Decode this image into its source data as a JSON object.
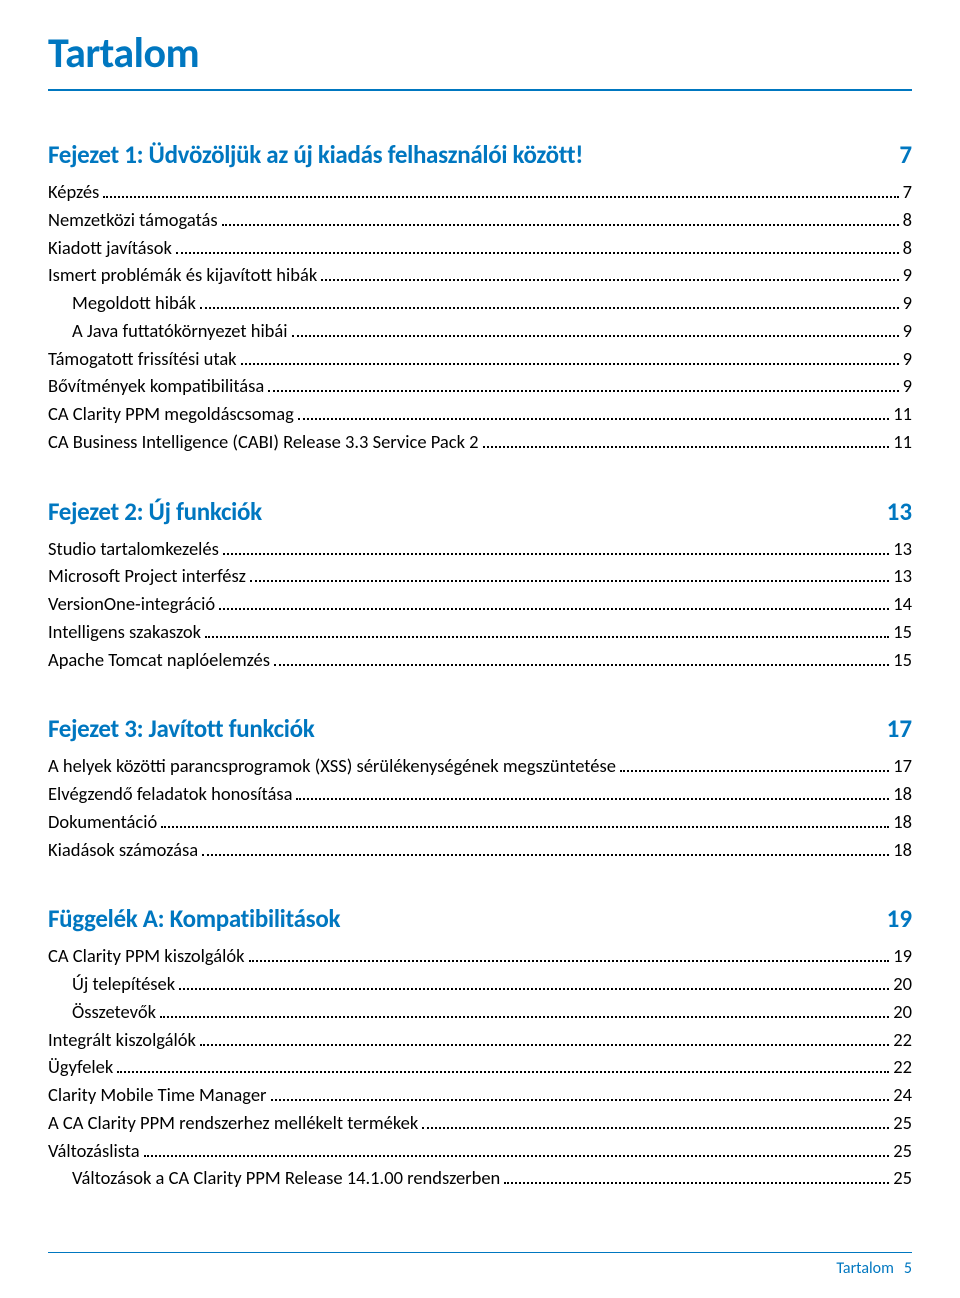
{
  "title": "Tartalom",
  "colors": {
    "accent": "#0077c0",
    "text": "#000000",
    "background": "#ffffff"
  },
  "typography": {
    "title_fontsize_pt": 32,
    "chapter_fontsize_pt": 19,
    "item_fontsize_pt": 14,
    "font_family": "Segoe UI / Calibri"
  },
  "chapters": [
    {
      "title": "Fejezet 1: Üdvözöljük az új kiadás felhasználói között!",
      "page": "7",
      "items": [
        {
          "label": "Képzés",
          "page": "7",
          "indent": 0
        },
        {
          "label": "Nemzetközi támogatás",
          "page": "8",
          "indent": 0
        },
        {
          "label": "Kiadott javítások",
          "page": "8",
          "indent": 0
        },
        {
          "label": "Ismert problémák és kijavított hibák",
          "page": "9",
          "indent": 0
        },
        {
          "label": "Megoldott hibák",
          "page": "9",
          "indent": 1
        },
        {
          "label": "A Java futtatókörnyezet hibái",
          "page": "9",
          "indent": 1
        },
        {
          "label": "Támogatott frissítési utak",
          "page": "9",
          "indent": 0
        },
        {
          "label": "Bővítmények kompatibilitása",
          "page": "9",
          "indent": 0
        },
        {
          "label": "CA Clarity PPM megoldáscsomag",
          "page": "11",
          "indent": 0
        },
        {
          "label": "CA Business Intelligence (CABI) Release 3.3 Service Pack 2",
          "page": "11",
          "indent": 0
        }
      ]
    },
    {
      "title": "Fejezet 2: Új funkciók",
      "page": "13",
      "items": [
        {
          "label": "Studio tartalomkezelés",
          "page": "13",
          "indent": 0
        },
        {
          "label": "Microsoft Project interfész",
          "page": "13",
          "indent": 0
        },
        {
          "label": "VersionOne-integráció",
          "page": "14",
          "indent": 0
        },
        {
          "label": "Intelligens szakaszok",
          "page": "15",
          "indent": 0
        },
        {
          "label": "Apache Tomcat naplóelemzés",
          "page": "15",
          "indent": 0
        }
      ]
    },
    {
      "title": "Fejezet 3: Javított funkciók",
      "page": "17",
      "items": [
        {
          "label": "A helyek közötti parancsprogramok (XSS) sérülékenységének megszüntetése",
          "page": "17",
          "indent": 0
        },
        {
          "label": "Elvégzendő feladatok honosítása",
          "page": "18",
          "indent": 0
        },
        {
          "label": "Dokumentáció",
          "page": "18",
          "indent": 0
        },
        {
          "label": "Kiadások számozása",
          "page": "18",
          "indent": 0
        }
      ]
    },
    {
      "title": "Függelék A: Kompatibilitások",
      "page": "19",
      "items": [
        {
          "label": "CA Clarity PPM kiszolgálók",
          "page": "19",
          "indent": 0
        },
        {
          "label": "Új telepítések",
          "page": "20",
          "indent": 1
        },
        {
          "label": "Összetevők",
          "page": "20",
          "indent": 1
        },
        {
          "label": "Integrált kiszolgálók",
          "page": "22",
          "indent": 0
        },
        {
          "label": "Ügyfelek",
          "page": "22",
          "indent": 0
        },
        {
          "label": "Clarity Mobile Time Manager",
          "page": "24",
          "indent": 0
        },
        {
          "label": "A CA Clarity PPM rendszerhez mellékelt termékek",
          "page": "25",
          "indent": 0
        },
        {
          "label": "Változáslista",
          "page": "25",
          "indent": 0
        },
        {
          "label": "Változások a CA Clarity PPM Release 14.1.00 rendszerben",
          "page": "25",
          "indent": 1
        }
      ]
    }
  ],
  "footer": {
    "label": "Tartalom",
    "page": "5"
  }
}
